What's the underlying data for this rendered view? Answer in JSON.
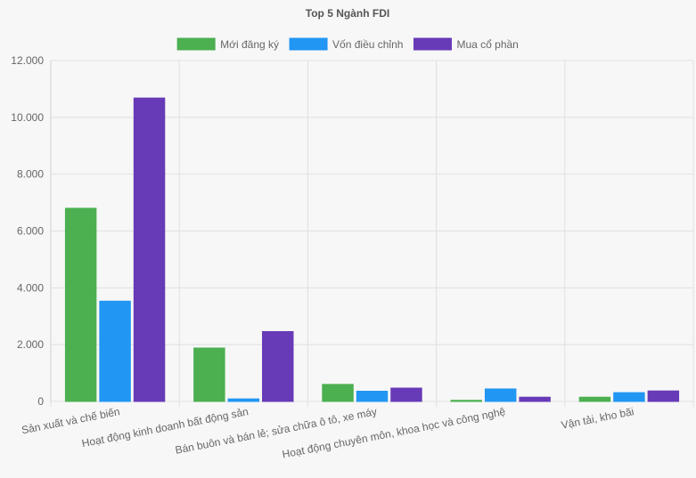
{
  "chart_data": {
    "type": "bar",
    "title": "Top 5 Ngành FDI",
    "categories": [
      "Sản xuất và chế biến",
      "Hoạt động kinh doanh bất động sản",
      "Bán buôn và bán lẻ; sửa chữa ô tô, xe máy",
      "Hoạt động chuyên môn, khoa học và công nghệ",
      "Vận tải, kho bãi"
    ],
    "series": [
      {
        "name": "Mới đăng ký",
        "color": "#4caf50",
        "values": [
          6800,
          1880,
          600,
          40,
          150
        ]
      },
      {
        "name": "Vốn điều chỉnh",
        "color": "#2196f3",
        "values": [
          3530,
          90,
          360,
          440,
          310
        ]
      },
      {
        "name": "Mua cổ phần",
        "color": "#673ab7",
        "values": [
          10680,
          2460,
          470,
          150,
          370
        ]
      }
    ],
    "yticks": [
      "0",
      "2.000",
      "4.000",
      "6.000",
      "8.000",
      "10.000",
      "12.000"
    ],
    "ylim": [
      0,
      12000
    ],
    "grid": true,
    "legend_position": "top"
  }
}
